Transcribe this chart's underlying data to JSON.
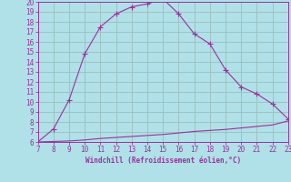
{
  "x_upper": [
    7,
    8,
    9,
    10,
    11,
    12,
    13,
    14,
    15,
    16,
    17,
    18,
    19,
    20,
    21,
    22,
    23
  ],
  "y_upper": [
    6.0,
    7.3,
    10.2,
    14.8,
    17.5,
    18.8,
    19.5,
    19.8,
    20.3,
    18.8,
    16.8,
    15.8,
    13.2,
    11.5,
    10.8,
    9.8,
    8.3
  ],
  "x_lower": [
    7,
    8,
    9,
    10,
    11,
    12,
    13,
    14,
    15,
    16,
    17,
    18,
    19,
    20,
    21,
    22,
    23
  ],
  "y_lower": [
    6.0,
    6.05,
    6.1,
    6.2,
    6.35,
    6.45,
    6.55,
    6.65,
    6.75,
    6.9,
    7.05,
    7.15,
    7.25,
    7.4,
    7.55,
    7.7,
    8.1
  ],
  "line_color": "#993399",
  "bg_color": "#b0e0e8",
  "grid_color": "#9bbfba",
  "xlabel": "Windchill (Refroidissement éolien,°C)",
  "tick_color": "#993399",
  "xlim": [
    7,
    23
  ],
  "ylim": [
    6,
    20
  ],
  "xticks": [
    7,
    8,
    9,
    10,
    11,
    12,
    13,
    14,
    15,
    16,
    17,
    18,
    19,
    20,
    21,
    22,
    23
  ],
  "yticks": [
    6,
    7,
    8,
    9,
    10,
    11,
    12,
    13,
    14,
    15,
    16,
    17,
    18,
    19,
    20
  ]
}
